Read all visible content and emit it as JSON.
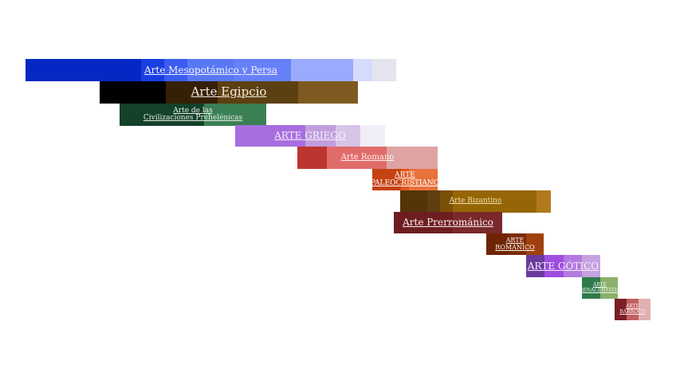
{
  "periods": [
    {
      "label": "Arte Mesopotámico y Persa",
      "colors": [
        "#0527c4",
        "#1a3fe0",
        "#3b5cf0",
        "#5a78f5",
        "#6680f8",
        "#9aaafc",
        "#d4dbfb",
        "#e4e4ee"
      ]
    },
    {
      "label": "Arte Egipcio",
      "colors": [
        "#000000",
        "#351f05",
        "#5d4012",
        "#7f5a20"
      ]
    },
    {
      "label": "Arte de las\nCivilizaciones Prehelénicas",
      "colors": [
        "#14412a",
        "#3b8055"
      ]
    },
    {
      "label": "ARTE GRIEGO",
      "colors": [
        "#a86ddf",
        "#c19fdc",
        "#d9c4e7",
        "#f1eef7"
      ]
    },
    {
      "label": "Arte Romano",
      "colors": [
        "#bd3530",
        "#e06c6a",
        "#e0a3a3"
      ]
    },
    {
      "label": "ARTE\nPALEOCRISTIANO",
      "colors": [
        "#c54312",
        "#e0571e",
        "#e8713c"
      ]
    },
    {
      "label": "Arte Bizantino",
      "colors": [
        "#553407",
        "#5f3f10",
        "#7a5005",
        "#966505",
        "#b07a1c"
      ]
    },
    {
      "label": "Arte Prerrománico",
      "colors": [
        "#6e1e20",
        "#7a292b"
      ]
    },
    {
      "label": "ARTE\nROMÁNICO",
      "colors": [
        "#6e2405",
        "#7c2b08",
        "#a0400d"
      ]
    },
    {
      "label": "ARTE GÓTICO",
      "colors": [
        "#6c3a9e",
        "#9e4de0",
        "#b37ae0",
        "#c7a2e0"
      ]
    },
    {
      "label": "ARTE\nRENACENTISTA",
      "colors": [
        "#2f7a4c",
        "#8ab06a"
      ]
    },
    {
      "label": "ARTE\nBARROCO",
      "colors": [
        "#7a1f24",
        "#c16060",
        "#e0b0b0"
      ]
    }
  ]
}
